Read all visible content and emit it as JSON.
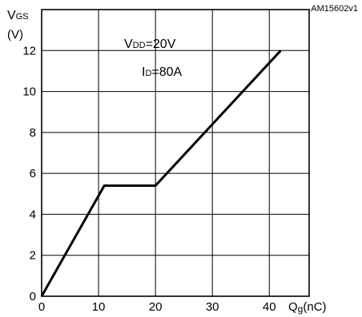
{
  "figure_code": "AM15602v1",
  "y_axis": {
    "main": "V",
    "sub": "GS",
    "unit": "(V)"
  },
  "x_axis": {
    "main": "Q",
    "sub": "g",
    "unit": "(nC)"
  },
  "annotations": {
    "vdd": {
      "main": "V",
      "sub": "DD",
      "value": "=20V"
    },
    "id": {
      "main": "I",
      "sub": "D",
      "value": "=80A"
    }
  },
  "chart_data": {
    "type": "line",
    "x_ticks": [
      0,
      10,
      20,
      30,
      40
    ],
    "y_ticks": [
      0,
      2,
      4,
      6,
      8,
      10,
      12
    ],
    "xlim": [
      0,
      47
    ],
    "ylim": [
      0,
      14
    ],
    "grid": true,
    "series": [
      {
        "x": [
          0,
          11,
          20,
          42
        ],
        "y": [
          0,
          5.4,
          5.4,
          12
        ]
      }
    ],
    "colors": {
      "line": "#000000",
      "grid": "#000000"
    }
  }
}
